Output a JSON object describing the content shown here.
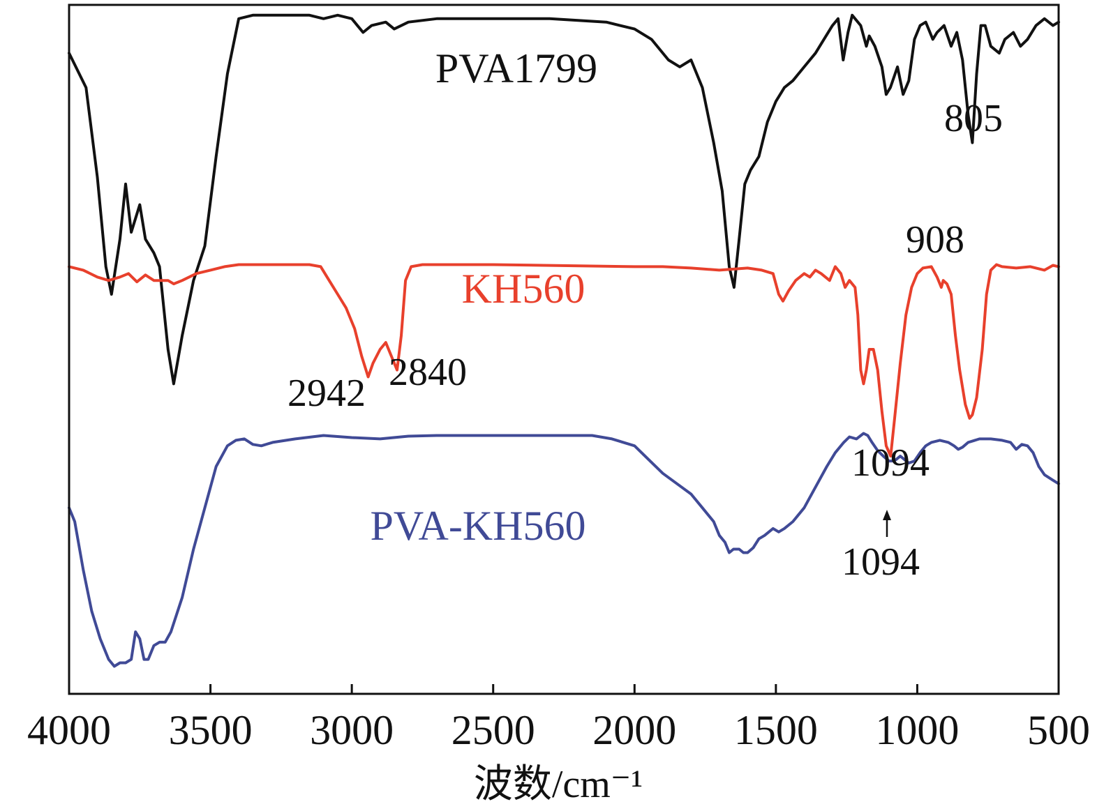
{
  "chart_data": {
    "type": "line",
    "title": "",
    "xlabel": "波数/cm⁻¹",
    "ylabel": "",
    "xlim": [
      4000,
      500
    ],
    "x_reversed": true,
    "x_ticks": [
      4000,
      3500,
      3000,
      2500,
      2000,
      1500,
      1000,
      500
    ],
    "y_axis_visible": false,
    "grid": false,
    "legend": "inline labels",
    "series": [
      {
        "name": "PVA1799",
        "color": "#111111",
        "points": [
          [
            4000,
            0.93
          ],
          [
            3940,
            0.88
          ],
          [
            3900,
            0.75
          ],
          [
            3870,
            0.62
          ],
          [
            3850,
            0.58
          ],
          [
            3820,
            0.66
          ],
          [
            3800,
            0.74
          ],
          [
            3780,
            0.67
          ],
          [
            3750,
            0.71
          ],
          [
            3730,
            0.66
          ],
          [
            3700,
            0.64
          ],
          [
            3680,
            0.62
          ],
          [
            3650,
            0.5
          ],
          [
            3630,
            0.45
          ],
          [
            3600,
            0.52
          ],
          [
            3560,
            0.6
          ],
          [
            3520,
            0.65
          ],
          [
            3480,
            0.78
          ],
          [
            3440,
            0.9
          ],
          [
            3400,
            0.98
          ],
          [
            3350,
            0.985
          ],
          [
            3250,
            0.985
          ],
          [
            3150,
            0.985
          ],
          [
            3100,
            0.98
          ],
          [
            3050,
            0.985
          ],
          [
            3000,
            0.98
          ],
          [
            2960,
            0.96
          ],
          [
            2930,
            0.97
          ],
          [
            2880,
            0.975
          ],
          [
            2850,
            0.965
          ],
          [
            2800,
            0.975
          ],
          [
            2700,
            0.98
          ],
          [
            2500,
            0.98
          ],
          [
            2300,
            0.98
          ],
          [
            2100,
            0.975
          ],
          [
            2000,
            0.965
          ],
          [
            1940,
            0.95
          ],
          [
            1880,
            0.92
          ],
          [
            1840,
            0.91
          ],
          [
            1800,
            0.92
          ],
          [
            1760,
            0.88
          ],
          [
            1720,
            0.8
          ],
          [
            1690,
            0.73
          ],
          [
            1665,
            0.62
          ],
          [
            1648,
            0.59
          ],
          [
            1630,
            0.66
          ],
          [
            1610,
            0.74
          ],
          [
            1590,
            0.76
          ],
          [
            1560,
            0.78
          ],
          [
            1530,
            0.83
          ],
          [
            1500,
            0.86
          ],
          [
            1470,
            0.88
          ],
          [
            1440,
            0.89
          ],
          [
            1400,
            0.91
          ],
          [
            1360,
            0.93
          ],
          [
            1330,
            0.95
          ],
          [
            1300,
            0.97
          ],
          [
            1280,
            0.98
          ],
          [
            1262,
            0.92
          ],
          [
            1245,
            0.96
          ],
          [
            1230,
            0.985
          ],
          [
            1200,
            0.97
          ],
          [
            1180,
            0.94
          ],
          [
            1170,
            0.955
          ],
          [
            1150,
            0.94
          ],
          [
            1125,
            0.91
          ],
          [
            1110,
            0.87
          ],
          [
            1095,
            0.88
          ],
          [
            1070,
            0.91
          ],
          [
            1050,
            0.87
          ],
          [
            1030,
            0.89
          ],
          [
            1010,
            0.95
          ],
          [
            990,
            0.97
          ],
          [
            970,
            0.975
          ],
          [
            945,
            0.95
          ],
          [
            930,
            0.96
          ],
          [
            905,
            0.97
          ],
          [
            880,
            0.94
          ],
          [
            860,
            0.96
          ],
          [
            840,
            0.92
          ],
          [
            820,
            0.84
          ],
          [
            805,
            0.8
          ],
          [
            790,
            0.9
          ],
          [
            775,
            0.97
          ],
          [
            760,
            0.97
          ],
          [
            740,
            0.94
          ],
          [
            710,
            0.93
          ],
          [
            690,
            0.95
          ],
          [
            660,
            0.96
          ],
          [
            635,
            0.94
          ],
          [
            610,
            0.95
          ],
          [
            580,
            0.97
          ],
          [
            550,
            0.98
          ],
          [
            520,
            0.97
          ],
          [
            500,
            0.975
          ]
        ]
      },
      {
        "name": "KH560",
        "color": "#e8402c",
        "points": [
          [
            4000,
            0.62
          ],
          [
            3950,
            0.615
          ],
          [
            3900,
            0.605
          ],
          [
            3860,
            0.6
          ],
          [
            3820,
            0.605
          ],
          [
            3790,
            0.61
          ],
          [
            3760,
            0.598
          ],
          [
            3730,
            0.608
          ],
          [
            3700,
            0.6
          ],
          [
            3650,
            0.6
          ],
          [
            3630,
            0.595
          ],
          [
            3600,
            0.6
          ],
          [
            3550,
            0.61
          ],
          [
            3500,
            0.615
          ],
          [
            3450,
            0.62
          ],
          [
            3400,
            0.623
          ],
          [
            3300,
            0.623
          ],
          [
            3150,
            0.623
          ],
          [
            3110,
            0.62
          ],
          [
            3080,
            0.6
          ],
          [
            3050,
            0.58
          ],
          [
            3020,
            0.56
          ],
          [
            2990,
            0.53
          ],
          [
            2965,
            0.49
          ],
          [
            2942,
            0.46
          ],
          [
            2925,
            0.48
          ],
          [
            2900,
            0.5
          ],
          [
            2880,
            0.51
          ],
          [
            2860,
            0.49
          ],
          [
            2840,
            0.47
          ],
          [
            2825,
            0.52
          ],
          [
            2810,
            0.6
          ],
          [
            2790,
            0.62
          ],
          [
            2750,
            0.623
          ],
          [
            2500,
            0.623
          ],
          [
            2000,
            0.62
          ],
          [
            1900,
            0.62
          ],
          [
            1800,
            0.618
          ],
          [
            1700,
            0.615
          ],
          [
            1600,
            0.618
          ],
          [
            1550,
            0.615
          ],
          [
            1510,
            0.61
          ],
          [
            1490,
            0.58
          ],
          [
            1475,
            0.57
          ],
          [
            1455,
            0.585
          ],
          [
            1430,
            0.6
          ],
          [
            1400,
            0.61
          ],
          [
            1380,
            0.605
          ],
          [
            1360,
            0.615
          ],
          [
            1340,
            0.61
          ],
          [
            1310,
            0.6
          ],
          [
            1290,
            0.62
          ],
          [
            1270,
            0.61
          ],
          [
            1255,
            0.59
          ],
          [
            1240,
            0.6
          ],
          [
            1220,
            0.59
          ],
          [
            1210,
            0.55
          ],
          [
            1200,
            0.47
          ],
          [
            1190,
            0.45
          ],
          [
            1180,
            0.47
          ],
          [
            1170,
            0.5
          ],
          [
            1155,
            0.5
          ],
          [
            1140,
            0.47
          ],
          [
            1125,
            0.41
          ],
          [
            1110,
            0.36
          ],
          [
            1094,
            0.345
          ],
          [
            1080,
            0.4
          ],
          [
            1060,
            0.48
          ],
          [
            1040,
            0.55
          ],
          [
            1020,
            0.59
          ],
          [
            1000,
            0.61
          ],
          [
            980,
            0.618
          ],
          [
            950,
            0.62
          ],
          [
            930,
            0.605
          ],
          [
            915,
            0.59
          ],
          [
            908,
            0.6
          ],
          [
            895,
            0.595
          ],
          [
            880,
            0.58
          ],
          [
            865,
            0.52
          ],
          [
            850,
            0.47
          ],
          [
            830,
            0.42
          ],
          [
            815,
            0.4
          ],
          [
            805,
            0.405
          ],
          [
            790,
            0.43
          ],
          [
            770,
            0.5
          ],
          [
            755,
            0.58
          ],
          [
            740,
            0.615
          ],
          [
            720,
            0.623
          ],
          [
            700,
            0.62
          ],
          [
            650,
            0.618
          ],
          [
            600,
            0.62
          ],
          [
            550,
            0.615
          ],
          [
            520,
            0.622
          ],
          [
            500,
            0.62
          ]
        ]
      },
      {
        "name": "PVA-KH560",
        "color": "#404a96",
        "points": [
          [
            4000,
            0.27
          ],
          [
            3980,
            0.25
          ],
          [
            3950,
            0.18
          ],
          [
            3920,
            0.12
          ],
          [
            3890,
            0.08
          ],
          [
            3860,
            0.05
          ],
          [
            3840,
            0.04
          ],
          [
            3820,
            0.045
          ],
          [
            3800,
            0.045
          ],
          [
            3780,
            0.05
          ],
          [
            3765,
            0.09
          ],
          [
            3750,
            0.08
          ],
          [
            3735,
            0.05
          ],
          [
            3720,
            0.05
          ],
          [
            3700,
            0.07
          ],
          [
            3680,
            0.075
          ],
          [
            3660,
            0.075
          ],
          [
            3640,
            0.09
          ],
          [
            3600,
            0.14
          ],
          [
            3560,
            0.21
          ],
          [
            3520,
            0.27
          ],
          [
            3480,
            0.33
          ],
          [
            3440,
            0.36
          ],
          [
            3410,
            0.368
          ],
          [
            3380,
            0.37
          ],
          [
            3350,
            0.362
          ],
          [
            3320,
            0.36
          ],
          [
            3280,
            0.365
          ],
          [
            3200,
            0.37
          ],
          [
            3100,
            0.375
          ],
          [
            3000,
            0.372
          ],
          [
            2900,
            0.37
          ],
          [
            2800,
            0.374
          ],
          [
            2700,
            0.375
          ],
          [
            2500,
            0.375
          ],
          [
            2300,
            0.375
          ],
          [
            2150,
            0.375
          ],
          [
            2080,
            0.37
          ],
          [
            2000,
            0.36
          ],
          [
            1950,
            0.34
          ],
          [
            1900,
            0.32
          ],
          [
            1850,
            0.305
          ],
          [
            1800,
            0.29
          ],
          [
            1760,
            0.27
          ],
          [
            1720,
            0.25
          ],
          [
            1700,
            0.23
          ],
          [
            1680,
            0.22
          ],
          [
            1665,
            0.205
          ],
          [
            1650,
            0.21
          ],
          [
            1630,
            0.21
          ],
          [
            1615,
            0.205
          ],
          [
            1600,
            0.205
          ],
          [
            1580,
            0.212
          ],
          [
            1560,
            0.225
          ],
          [
            1540,
            0.23
          ],
          [
            1510,
            0.24
          ],
          [
            1490,
            0.235
          ],
          [
            1470,
            0.24
          ],
          [
            1440,
            0.25
          ],
          [
            1400,
            0.27
          ],
          [
            1360,
            0.3
          ],
          [
            1320,
            0.33
          ],
          [
            1290,
            0.35
          ],
          [
            1260,
            0.365
          ],
          [
            1240,
            0.373
          ],
          [
            1215,
            0.37
          ],
          [
            1190,
            0.378
          ],
          [
            1175,
            0.375
          ],
          [
            1160,
            0.365
          ],
          [
            1140,
            0.353
          ],
          [
            1120,
            0.345
          ],
          [
            1100,
            0.338
          ],
          [
            1090,
            0.338
          ],
          [
            1075,
            0.34
          ],
          [
            1060,
            0.345
          ],
          [
            1045,
            0.34
          ],
          [
            1030,
            0.335
          ],
          [
            1010,
            0.338
          ],
          [
            990,
            0.35
          ],
          [
            970,
            0.36
          ],
          [
            950,
            0.365
          ],
          [
            920,
            0.368
          ],
          [
            890,
            0.365
          ],
          [
            870,
            0.36
          ],
          [
            855,
            0.355
          ],
          [
            840,
            0.358
          ],
          [
            820,
            0.365
          ],
          [
            780,
            0.37
          ],
          [
            740,
            0.37
          ],
          [
            700,
            0.368
          ],
          [
            670,
            0.365
          ],
          [
            650,
            0.355
          ],
          [
            630,
            0.362
          ],
          [
            610,
            0.36
          ],
          [
            590,
            0.35
          ],
          [
            570,
            0.33
          ],
          [
            550,
            0.318
          ],
          [
            520,
            0.31
          ],
          [
            500,
            0.305
          ]
        ]
      }
    ],
    "series_labels": [
      "PVA1799",
      "KH560",
      "PVA-KH560"
    ],
    "annotations": [
      "805",
      "908",
      "2942",
      "2840",
      "1094",
      "1094"
    ]
  }
}
